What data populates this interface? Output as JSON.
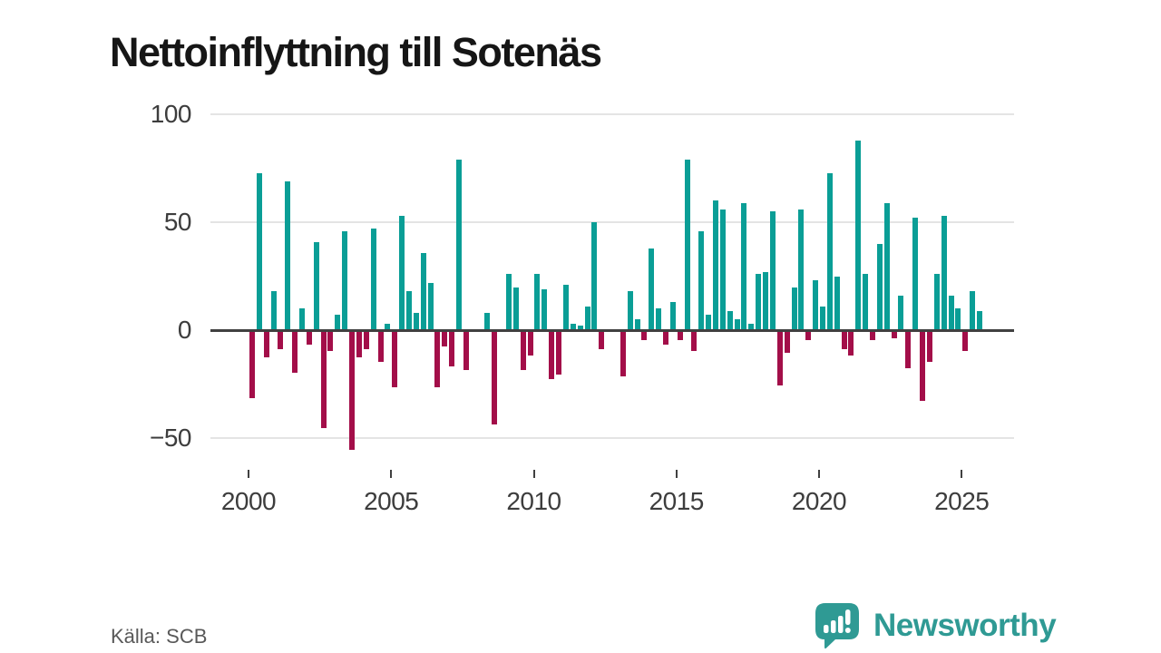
{
  "title": "Nettoinflyttning till Sotenäs",
  "source": "Källa: SCB",
  "brand": {
    "name": "Newsworthy",
    "icon": "bar-chart-speech-bubble-icon",
    "color": "#2f9a94"
  },
  "colors": {
    "positive_bar": "#0a9e96",
    "negative_bar": "#a30e49",
    "gridline": "#e4e4e4",
    "zero_line": "#404040",
    "axis_text": "#3d3d3d"
  },
  "chart_data": {
    "type": "bar",
    "title": "Nettoinflyttning till Sotenäs",
    "xlabel": "",
    "ylabel": "",
    "frequency": "quarterly",
    "x_start": "2000Q1",
    "x_end": "2025Q3",
    "x_tick_labels": [
      "2000",
      "2005",
      "2010",
      "2015",
      "2020",
      "2025"
    ],
    "y_ticks": [
      100,
      50,
      0,
      -50
    ],
    "ylim": [
      -62,
      107
    ],
    "grid": "horizontal",
    "legend": "none",
    "values": [
      -31,
      73,
      -12,
      18,
      -8,
      69,
      -19,
      10,
      -6,
      41,
      -45,
      -9,
      7,
      46,
      -55,
      -12,
      -8,
      47,
      -14,
      3,
      -26,
      53,
      18,
      8,
      36,
      22,
      -26,
      -7,
      -16,
      79,
      -18,
      0,
      0,
      8,
      -43,
      0,
      26,
      20,
      -18,
      -11,
      26,
      19,
      -22,
      -20,
      21,
      3,
      2,
      11,
      50,
      -8,
      0,
      0,
      -21,
      18,
      5,
      -4,
      38,
      10,
      -6,
      13,
      -4,
      79,
      -9,
      46,
      7,
      60,
      56,
      9,
      5,
      59,
      3,
      26,
      27,
      55,
      -25,
      -10,
      20,
      56,
      -4,
      23,
      11,
      73,
      25,
      -8,
      -11,
      88,
      26,
      -4,
      40,
      59,
      -3,
      16,
      -17,
      52,
      -32,
      -14,
      26,
      53,
      16,
      10,
      -9,
      18,
      9
    ]
  }
}
